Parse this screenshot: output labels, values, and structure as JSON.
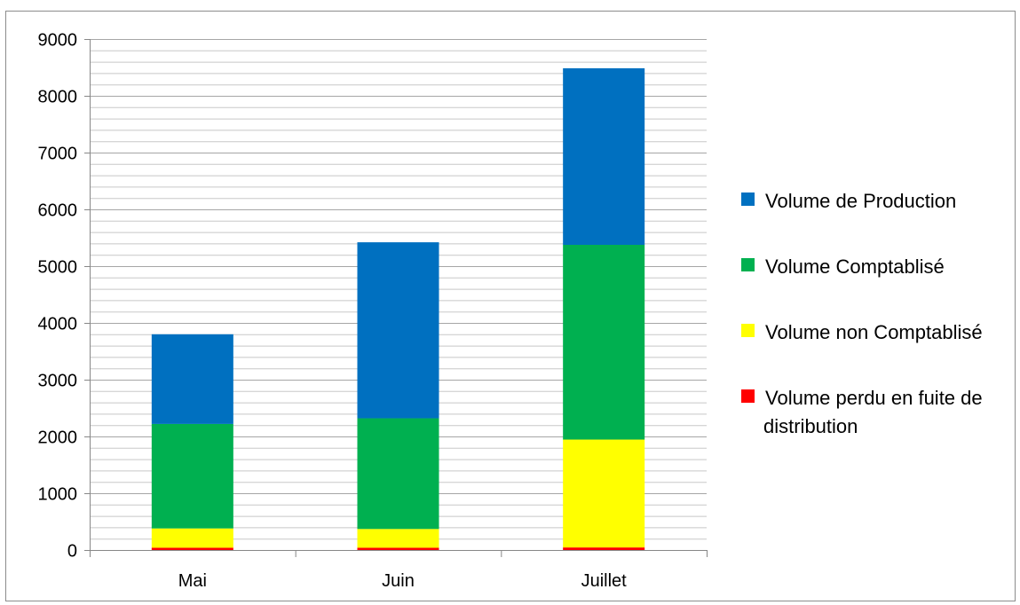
{
  "chart_data": {
    "type": "bar",
    "stacked": true,
    "categories": [
      "Mai",
      "Juin",
      "Juillet"
    ],
    "series": [
      {
        "name": "Volume perdu en fuite de distribution",
        "color": "#ff0000",
        "values": [
          40,
          40,
          45
        ]
      },
      {
        "name": "Volume non Comptablisé",
        "color": "#ffff00",
        "values": [
          340,
          330,
          1900
        ]
      },
      {
        "name": "Volume Comptablisé",
        "color": "#00b050",
        "values": [
          1840,
          1950,
          3430
        ]
      },
      {
        "name": "Volume de Production",
        "color": "#0070c0",
        "values": [
          1580,
          3100,
          3110
        ]
      }
    ],
    "legend_order": [
      3,
      2,
      1,
      0
    ],
    "legend_lines": [
      [
        "Volume de Production"
      ],
      [
        "Volume Comptablisé"
      ],
      [
        "Volume non Comptablisé"
      ],
      [
        "Volume perdu en fuite de",
        "distribution"
      ]
    ],
    "ylim": [
      0,
      9000
    ],
    "yticks": [
      0,
      1000,
      2000,
      3000,
      4000,
      5000,
      6000,
      7000,
      8000,
      9000
    ],
    "minor_grid_step": 200,
    "grid": true,
    "legend_position": "right",
    "title": "",
    "xlabel": "",
    "ylabel": ""
  }
}
